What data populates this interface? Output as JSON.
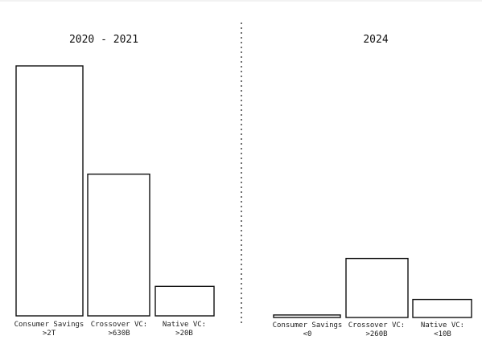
{
  "chart_data": [
    {
      "type": "bar",
      "title": "2020 - 2021",
      "categories": [
        "Consumer Savings",
        "Crossover VC:",
        "Native VC:"
      ],
      "value_labels": [
        ">2T",
        ">630B",
        ">20B"
      ],
      "relative_heights": [
        1.0,
        0.567,
        0.118
      ]
    },
    {
      "type": "bar",
      "title": "2024",
      "categories": [
        "Consumer Savings",
        "Crossover VC:",
        "Native VC:"
      ],
      "value_labels": [
        "<0",
        ">260B",
        "<10B"
      ],
      "relative_heights": [
        0.01,
        0.236,
        0.072
      ]
    }
  ]
}
